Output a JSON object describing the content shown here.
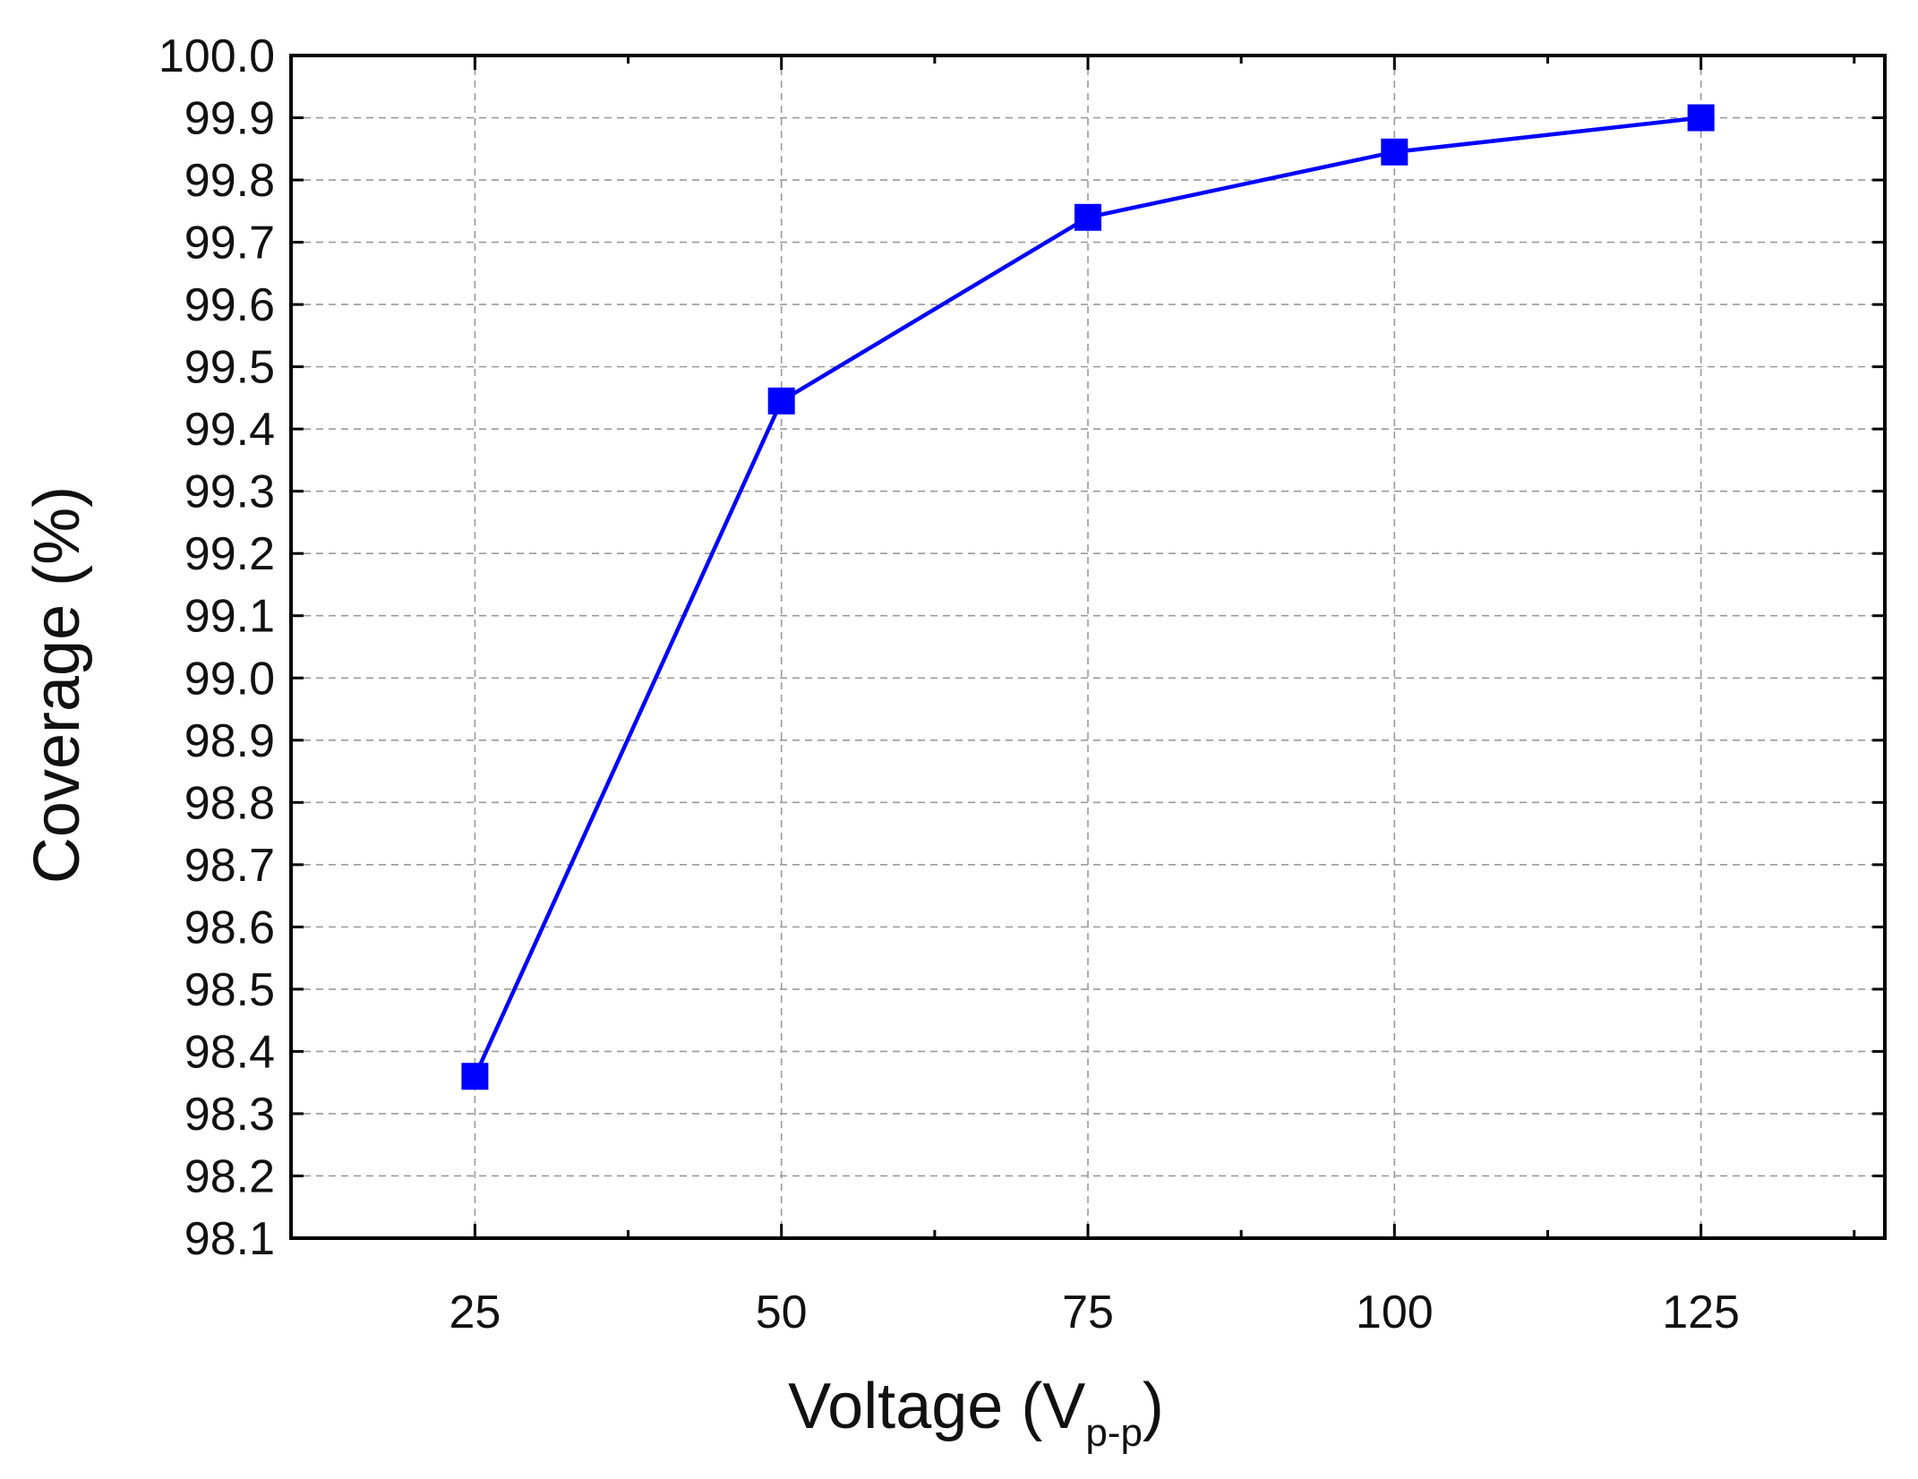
{
  "chart_data": {
    "type": "line",
    "xlabel": "Voltage (V",
    "xlabel_subscript": "p-p",
    "xlabel_suffix": ")",
    "ylabel": "Coverage (%)",
    "xlim": [
      10,
      140
    ],
    "ylim": [
      98.1,
      100.0
    ],
    "x_ticks": [
      25,
      50,
      75,
      100,
      125
    ],
    "x_minor_ticks": [
      37.5,
      62.5,
      87.5,
      112.5,
      137.5
    ],
    "y_ticks": [
      98.1,
      98.2,
      98.3,
      98.4,
      98.5,
      98.6,
      98.7,
      98.8,
      98.9,
      99.0,
      99.1,
      99.2,
      99.3,
      99.4,
      99.5,
      99.6,
      99.7,
      99.8,
      99.9,
      100.0
    ],
    "y_tick_labels": [
      "98.1",
      "98.2",
      "98.3",
      "98.4",
      "98.5",
      "98.6",
      "98.7",
      "98.8",
      "98.9",
      "99.0",
      "99.1",
      "99.2",
      "99.3",
      "99.4",
      "99.5",
      "99.6",
      "99.7",
      "99.8",
      "99.9",
      "100.0"
    ],
    "grid": true,
    "legend": false,
    "series": [
      {
        "x": [
          25,
          50,
          75,
          100,
          125
        ],
        "y": [
          98.36,
          99.445,
          99.74,
          99.845,
          99.9
        ],
        "color": "#0000ff",
        "marker": "square"
      }
    ]
  }
}
